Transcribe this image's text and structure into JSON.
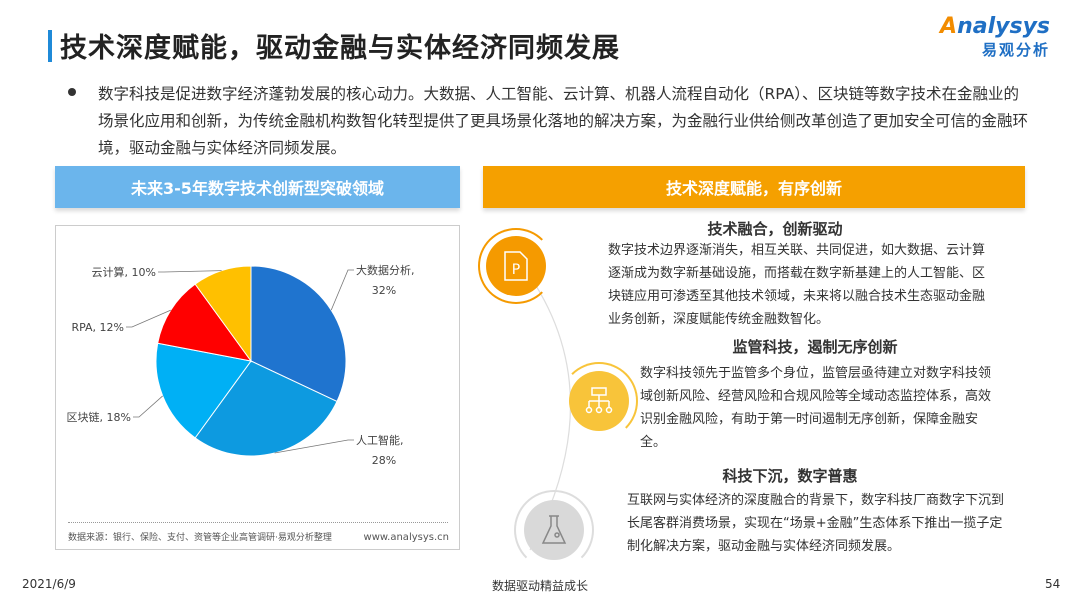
{
  "title": "技术深度赋能，驱动金融与实体经济同频发展",
  "logo": {
    "en": "nalysys",
    "en_initial": "A",
    "cn": "易观分析"
  },
  "intro": "数字科技是促进数字经济蓬勃发展的核心动力。大数据、人工智能、云计算、机器人流程自动化（RPA）、区块链等数字技术在金融业的场景化应用和创新，为传统金融机构数智化转型提供了更具场景化落地的解决方案，为金融行业供给侧改革创造了更加安全可信的金融环境，驱动金融与实体经济同频发展。",
  "left_header": "未来3-5年数字技术创新型突破领域",
  "right_header": "技术深度赋能，有序创新",
  "chart_data": {
    "type": "pie",
    "categories": [
      "大数据分析",
      "人工智能",
      "区块链",
      "RPA",
      "云计算"
    ],
    "values": [
      32,
      28,
      18,
      12,
      10
    ],
    "labels": [
      "大数据分析,",
      "人工智能,",
      "区块链, 18%",
      "RPA, 12%",
      "云计算, 10%"
    ],
    "sub_labels": [
      "32%",
      "28%",
      "",
      "",
      ""
    ],
    "colors": [
      "#1f74cf",
      "#0d9ae0",
      "#00b0f5",
      "#ff0000",
      "#ffc000"
    ],
    "start": "12 o'clock, clockwise",
    "source": "数据来源：银行、保险、支付、资管等企业高管调研·易观分析整理",
    "site": "www.analysys.cn"
  },
  "sections": [
    {
      "title": "技术融合，创新驱动",
      "body": "数字技术边界逐渐消失，相互关联、共同促进，如大数据、云计算逐渐成为数字新基础设施，而搭载在数字新基建上的人工智能、区块链应用可渗透至其他技术领域，未来将以融合技术生态驱动金融业务创新，深度赋能传统金融数智化。",
      "icon": "document-p-icon",
      "color": "#f59a00"
    },
    {
      "title": "监管科技，遏制无序创新",
      "body": "数字科技领先于监管多个身位，监管层亟待建立对数字科技领域创新风险、经营风险和合规风险等全域动态监控体系，高效识别金融风险，有助于第一时间遏制无序创新，保障金融安全。",
      "icon": "hierarchy-icon",
      "color": "#f8c43a"
    },
    {
      "title": "科技下沉，数字普惠",
      "body": "互联网与实体经济的深度融合的背景下，数字科技厂商数字下沉到长尾客群消费场景，实现在“场景+金融”生态体系下推出一揽子定制化解决方案，驱动金融与实体经济同频发展。",
      "icon": "flask-icon",
      "color": "#d9d9d9"
    }
  ],
  "footer": {
    "date": "2021/6/9",
    "center": "数据驱动精益成长",
    "page": "54"
  }
}
